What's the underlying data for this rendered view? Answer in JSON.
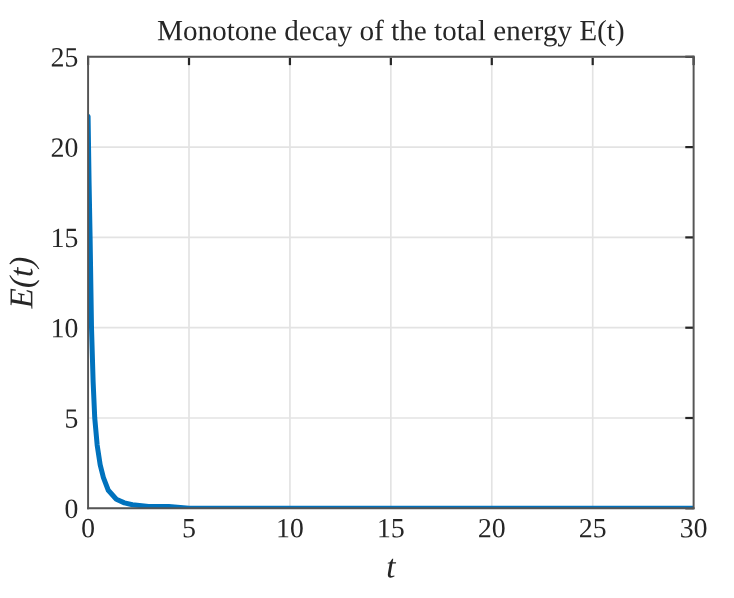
{
  "chart_data": {
    "type": "line",
    "title": "Monotone decay of the total energy E(t)",
    "xlabel": "t",
    "ylabel": "E(t)",
    "series": [
      {
        "color": "#0072bd",
        "x": [
          0,
          0.05,
          0.1,
          0.17,
          0.25,
          0.33,
          0.45,
          0.6,
          0.76,
          1.0,
          1.4,
          1.8,
          2.2,
          3.0,
          4.0,
          5.0,
          7.0,
          10.0,
          15.0,
          20.0,
          25.0,
          30.0
        ],
        "values": [
          21.7,
          18.0,
          15.0,
          10.0,
          7.0,
          5.0,
          3.5,
          2.4,
          1.7,
          1.0,
          0.5,
          0.3,
          0.2,
          0.1,
          0.1,
          0,
          0,
          0,
          0,
          0,
          0,
          0
        ]
      }
    ],
    "xlim": [
      0,
      30
    ],
    "ylim": [
      0,
      25
    ],
    "xticks": [
      0,
      5,
      10,
      15,
      20,
      25,
      30
    ],
    "yticks": [
      0,
      5,
      10,
      15,
      20,
      25
    ],
    "grid": true,
    "marker": "none",
    "line_style": "solid"
  }
}
